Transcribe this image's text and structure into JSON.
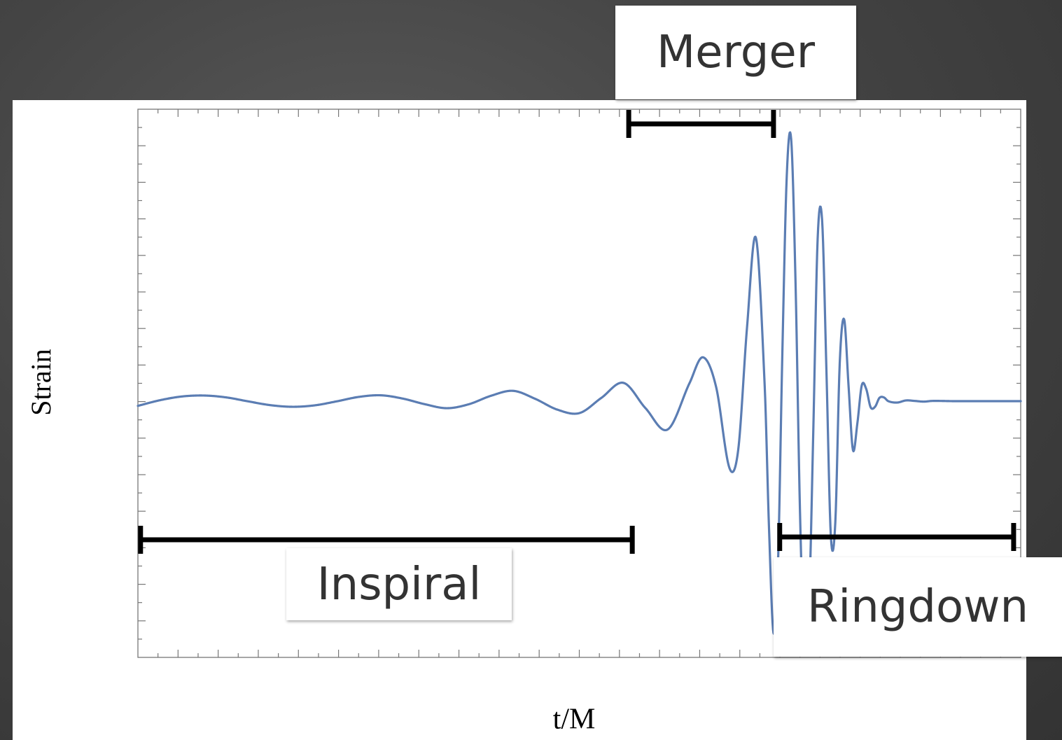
{
  "chart_data": {
    "type": "line",
    "title": "",
    "xlabel": "t/M",
    "ylabel": "Strain",
    "xlim": [
      0,
      1
    ],
    "ylim": [
      -1.2,
      1.2
    ],
    "tick_labels_shown": false,
    "grid": false,
    "series": [
      {
        "color": "#5b7db3",
        "x": [
          0.0,
          0.025,
          0.05,
          0.075,
          0.1,
          0.125,
          0.15,
          0.175,
          0.2,
          0.225,
          0.25,
          0.275,
          0.3,
          0.325,
          0.35,
          0.375,
          0.4,
          0.425,
          0.45,
          0.475,
          0.5,
          0.525,
          0.55,
          0.575,
          0.6,
          0.625,
          0.64,
          0.655,
          0.67,
          0.68,
          0.69,
          0.7,
          0.71,
          0.715,
          0.72,
          0.725,
          0.73,
          0.735,
          0.74,
          0.745,
          0.75,
          0.755,
          0.76,
          0.765,
          0.77,
          0.775,
          0.78,
          0.785,
          0.79,
          0.795,
          0.8,
          0.805,
          0.81,
          0.815,
          0.82,
          0.825,
          0.83,
          0.835,
          0.84,
          0.845,
          0.85,
          0.86,
          0.87,
          0.88,
          0.89,
          0.9,
          0.925,
          0.95,
          0.975,
          1.0
        ],
        "values": [
          -0.02,
          0.004,
          0.02,
          0.024,
          0.016,
          -0.001,
          -0.017,
          -0.024,
          -0.018,
          -0.001,
          0.018,
          0.025,
          0.011,
          -0.013,
          -0.03,
          -0.013,
          0.023,
          0.044,
          0.01,
          -0.036,
          -0.051,
          0.014,
          0.078,
          -0.03,
          -0.121,
          0.078,
          0.187,
          0.06,
          -0.284,
          -0.208,
          0.315,
          0.697,
          0.066,
          -0.553,
          -0.989,
          -0.704,
          0.204,
          0.96,
          1.117,
          0.496,
          -0.473,
          -1.048,
          -0.897,
          -0.137,
          0.693,
          0.774,
          0.122,
          -0.579,
          -0.517,
          0.161,
          0.349,
          0.065,
          -0.209,
          -0.094,
          0.068,
          0.052,
          -0.026,
          -0.024,
          0.014,
          0.016,
          0.0,
          -0.006,
          0.003,
          0.001,
          -0.002,
          0.001,
          0.0,
          0.0,
          0.0,
          0.0
        ]
      }
    ],
    "phases": [
      {
        "name": "Inspiral",
        "start": 0.003,
        "end": 0.56
      },
      {
        "name": "Merger",
        "start": 0.556,
        "end": 0.72
      },
      {
        "name": "Ringdown",
        "start": 0.727,
        "end": 0.992
      }
    ]
  },
  "labels": {
    "merger": "Merger",
    "inspiral": "Inspiral",
    "ringdown": "Ringdown"
  }
}
